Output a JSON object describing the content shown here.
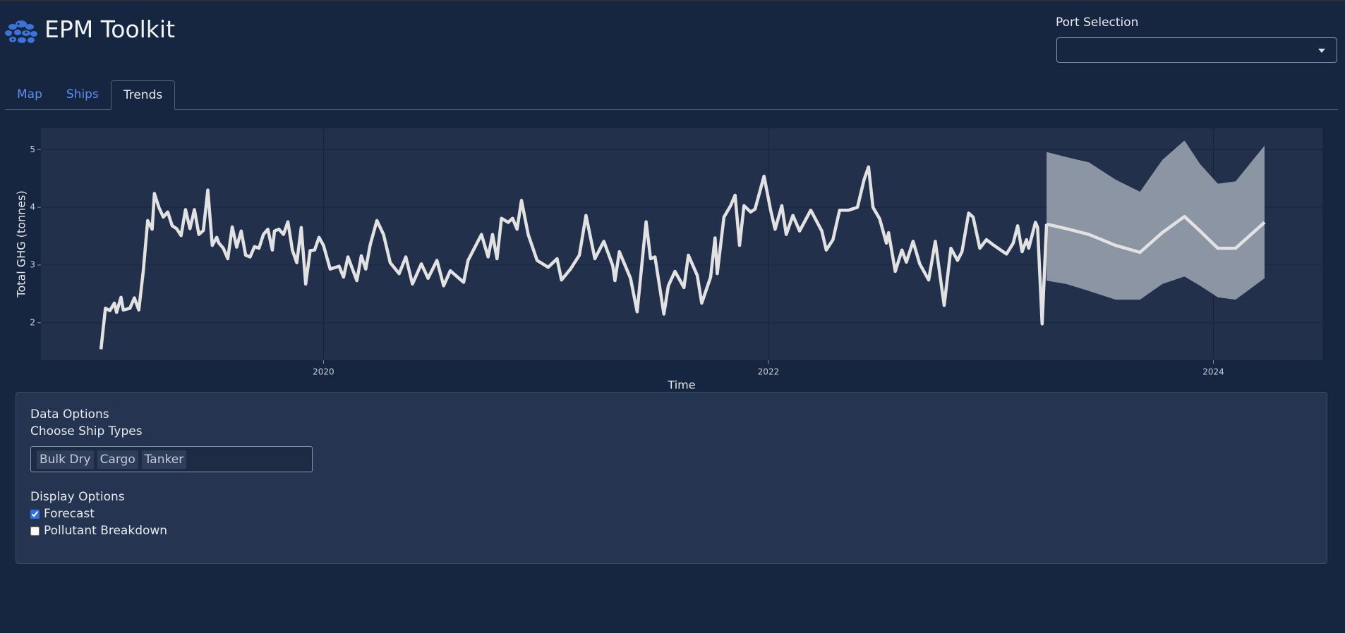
{
  "header": {
    "title": "EPM Toolkit",
    "port_selection_label": "Port Selection"
  },
  "tabs": [
    {
      "label": "Map",
      "active": false
    },
    {
      "label": "Ships",
      "active": false
    },
    {
      "label": "Trends",
      "active": true
    }
  ],
  "chart_data": {
    "type": "line",
    "x_label": "Time",
    "y_label": "Total GHG (tonnes)",
    "xlim": [
      2018.73,
      2024.49
    ],
    "ylim": [
      1.35,
      5.37
    ],
    "xticks": [
      2020,
      2022,
      2024
    ],
    "yticks": [
      2,
      3,
      4,
      5
    ],
    "grid": true,
    "series": [
      {
        "color": "#e2e2e2",
        "x": [
          2019,
          2019.02,
          2019.04,
          2019.06,
          2019.07,
          2019.09,
          2019.1,
          2019.13,
          2019.15,
          2019.17,
          2019.19,
          2019.21,
          2019.23,
          2019.24,
          2019.26,
          2019.28,
          2019.3,
          2019.32,
          2019.34,
          2019.36,
          2019.38,
          2019.4,
          2019.42,
          2019.44,
          2019.46,
          2019.48,
          2019.5,
          2019.52,
          2019.53,
          2019.55,
          2019.57,
          2019.59,
          2019.61,
          2019.63,
          2019.65,
          2019.67,
          2019.69,
          2019.71,
          2019.73,
          2019.75,
          2019.77,
          2019.78,
          2019.8,
          2019.82,
          2019.84,
          2019.86,
          2019.88,
          2019.9,
          2019.92,
          2019.94,
          2019.96,
          2019.98,
          2020,
          2020.03,
          2020.07,
          2020.09,
          2020.11,
          2020.15,
          2020.17,
          2020.19,
          2020.21,
          2020.24,
          2020.27,
          2020.3,
          2020.34,
          2020.37,
          2020.4,
          2020.44,
          2020.47,
          2020.51,
          2020.54,
          2020.57,
          2020.63,
          2020.65,
          2020.71,
          2020.74,
          2020.76,
          2020.78,
          2020.8,
          2020.83,
          2020.85,
          2020.87,
          2020.89,
          2020.92,
          2020.96,
          2021.01,
          2021.05,
          2021.07,
          2021.11,
          2021.15,
          2021.18,
          2021.22,
          2021.26,
          2021.3,
          2021.31,
          2021.33,
          2021.38,
          2021.41,
          2021.45,
          2021.47,
          2021.49,
          2021.53,
          2021.55,
          2021.58,
          2021.62,
          2021.64,
          2021.68,
          2021.7,
          2021.74,
          2021.76,
          2021.77,
          2021.8,
          2021.83,
          2021.85,
          2021.87,
          2021.89,
          2021.92,
          2021.94,
          2021.98,
          2022.01,
          2022.03,
          2022.06,
          2022.08,
          2022.11,
          2022.14,
          2022.19,
          2022.24,
          2022.26,
          2022.29,
          2022.32,
          2022.36,
          2022.4,
          2022.43,
          2022.45,
          2022.47,
          2022.5,
          2022.53,
          2022.54,
          2022.57,
          2022.6,
          2022.62,
          2022.65,
          2022.68,
          2022.72,
          2022.75,
          2022.79,
          2022.82,
          2022.85,
          2022.87,
          2022.9,
          2022.92,
          2022.95,
          2022.98,
          2023.01,
          2023.07,
          2023.1,
          2023.12,
          2023.14,
          2023.16,
          2023.17,
          2023.2,
          2023.21,
          2023.23,
          2023.25
        ],
        "values": [
          1.54,
          2.25,
          2.21,
          2.34,
          2.18,
          2.44,
          2.22,
          2.25,
          2.43,
          2.22,
          2.89,
          3.77,
          3.62,
          4.24,
          4.0,
          3.83,
          3.92,
          3.68,
          3.63,
          3.51,
          3.96,
          3.63,
          3.96,
          3.53,
          3.6,
          4.3,
          3.34,
          3.48,
          3.38,
          3.29,
          3.11,
          3.66,
          3.31,
          3.59,
          3.17,
          3.14,
          3.32,
          3.29,
          3.53,
          3.62,
          3.26,
          3.59,
          3.62,
          3.53,
          3.75,
          3.26,
          3.04,
          3.65,
          2.67,
          3.25,
          3.26,
          3.48,
          3.34,
          2.93,
          2.98,
          2.79,
          3.14,
          2.73,
          3.16,
          2.93,
          3.35,
          3.77,
          3.53,
          3.04,
          2.85,
          3.14,
          2.67,
          3.02,
          2.77,
          3.08,
          2.64,
          2.9,
          2.7,
          3.08,
          3.53,
          3.14,
          3.53,
          3.11,
          3.81,
          3.74,
          3.81,
          3.62,
          4.12,
          3.53,
          3.08,
          2.96,
          3.11,
          2.74,
          2.93,
          3.17,
          3.86,
          3.11,
          3.41,
          2.99,
          2.73,
          3.23,
          2.77,
          2.19,
          3.75,
          3.11,
          3.14,
          2.15,
          2.64,
          2.89,
          2.61,
          3.17,
          2.82,
          2.34,
          2.79,
          3.47,
          2.85,
          3.83,
          4.03,
          4.21,
          3.34,
          4.03,
          3.92,
          3.97,
          4.54,
          3.95,
          3.62,
          4.03,
          3.53,
          3.86,
          3.59,
          3.95,
          3.59,
          3.26,
          3.44,
          3.95,
          3.95,
          4.0,
          4.48,
          4.7,
          4.0,
          3.8,
          3.38,
          3.56,
          2.89,
          3.26,
          3.05,
          3.41,
          3.02,
          2.74,
          3.41,
          2.3,
          3.29,
          3.08,
          3.23,
          3.9,
          3.83,
          3.29,
          3.44,
          3.35,
          3.19,
          3.38,
          3.68,
          3.23,
          3.44,
          3.29,
          3.74,
          3.65,
          1.98,
          3.71
        ]
      },
      {
        "color": "#e2e2e2",
        "band_color": "#8b95a4",
        "x": [
          2023.25,
          2023.34,
          2023.44,
          2023.56,
          2023.67,
          2023.77,
          2023.87,
          2023.94,
          2024.02,
          2024.1,
          2024.23
        ],
        "values": [
          3.71,
          3.63,
          3.53,
          3.34,
          3.22,
          3.56,
          3.84,
          3.59,
          3.29,
          3.29,
          3.74
        ],
        "upper": [
          4.96,
          4.87,
          4.78,
          4.48,
          4.27,
          4.82,
          5.16,
          4.75,
          4.41,
          4.45,
          5.07
        ],
        "lower": [
          2.73,
          2.67,
          2.55,
          2.4,
          2.4,
          2.67,
          2.8,
          2.64,
          2.44,
          2.4,
          2.77
        ]
      }
    ]
  },
  "data_options": {
    "title": "Data Options",
    "ship_types_label": "Choose Ship Types",
    "ship_types": [
      "Bulk Dry",
      "Cargo",
      "Tanker"
    ]
  },
  "display_options": {
    "title": "Display Options",
    "options": [
      {
        "label": "Forecast",
        "checked": true
      },
      {
        "label": "Pollutant Breakdown",
        "checked": false
      }
    ]
  }
}
